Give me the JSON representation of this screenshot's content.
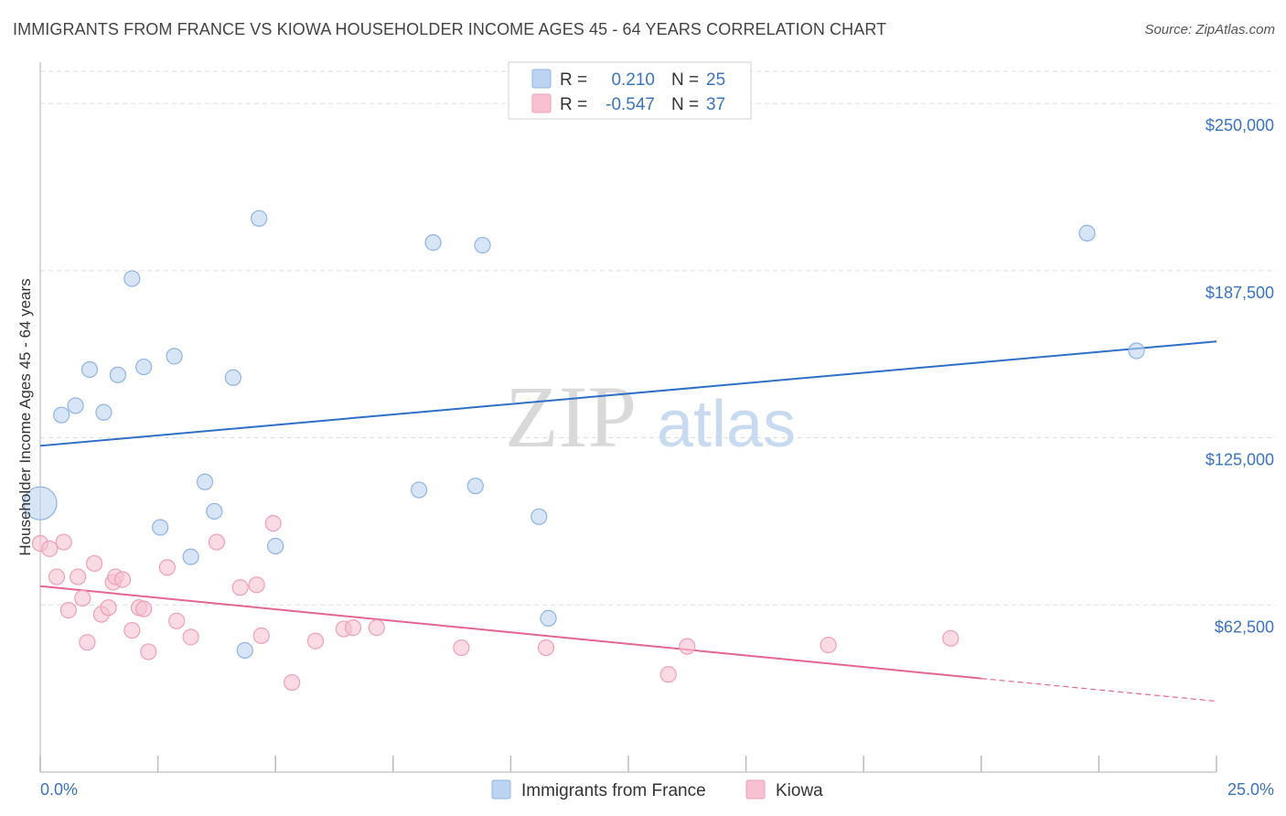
{
  "title": "IMMIGRANTS FROM FRANCE VS KIOWA HOUSEHOLDER INCOME AGES 45 - 64 YEARS CORRELATION CHART",
  "source": "Source: ZipAtlas.com",
  "watermark": {
    "zip": "ZIP",
    "atlas": "atlas"
  },
  "colors": {
    "blue_fill": "#bcd4f2",
    "blue_stroke": "#8fb3e3",
    "blue_line": "#2f6fc7",
    "pink_fill": "#f7c1d1",
    "pink_stroke": "#ee9fb8",
    "pink_line": "#e46593",
    "tick_text": "#3a73c2",
    "grid": "#dddddd"
  },
  "legend_stats": [
    {
      "r_label": "R =",
      "r_value": "0.210",
      "n_label": "N =",
      "n_value": "25"
    },
    {
      "r_label": "R =",
      "r_value": "-0.547",
      "n_label": "N =",
      "n_value": "37"
    }
  ],
  "chart_data": {
    "type": "scatter",
    "xlabel": "",
    "ylabel": "Householder Income Ages 45 - 64 years",
    "xlim": [
      0,
      25
    ],
    "ylim": [
      0,
      262000
    ],
    "x_tick_labels": [
      "0.0%",
      "25.0%"
    ],
    "y_ticks": [
      62500,
      125000,
      187500,
      250000
    ],
    "y_tick_labels": [
      "$62,500",
      "$125,000",
      "$187,500",
      "$250,000"
    ],
    "grid": true,
    "legend_position": "bottom-center",
    "series": [
      {
        "name": "Immigrants from France",
        "color": "#bcd4f2",
        "trend": {
          "x": [
            0,
            25
          ],
          "y": [
            122000,
            161000
          ]
        },
        "points": [
          {
            "x": 0.0,
            "y": 100500,
            "size": "large"
          },
          {
            "x": 0.45,
            "y": 133500
          },
          {
            "x": 0.75,
            "y": 137000
          },
          {
            "x": 1.05,
            "y": 150500
          },
          {
            "x": 1.35,
            "y": 134500
          },
          {
            "x": 1.65,
            "y": 148500
          },
          {
            "x": 1.95,
            "y": 184500
          },
          {
            "x": 2.2,
            "y": 151500
          },
          {
            "x": 2.55,
            "y": 91500
          },
          {
            "x": 2.85,
            "y": 155500
          },
          {
            "x": 3.2,
            "y": 80500
          },
          {
            "x": 3.5,
            "y": 108500
          },
          {
            "x": 3.7,
            "y": 97500
          },
          {
            "x": 4.1,
            "y": 147500
          },
          {
            "x": 4.35,
            "y": 45500
          },
          {
            "x": 4.65,
            "y": 207000
          },
          {
            "x": 5.0,
            "y": 84500
          },
          {
            "x": 8.05,
            "y": 105500
          },
          {
            "x": 8.35,
            "y": 198000
          },
          {
            "x": 9.25,
            "y": 107000
          },
          {
            "x": 9.4,
            "y": 197000
          },
          {
            "x": 10.6,
            "y": 95500
          },
          {
            "x": 10.8,
            "y": 57500
          },
          {
            "x": 22.25,
            "y": 201500
          },
          {
            "x": 23.3,
            "y": 157500
          }
        ]
      },
      {
        "name": "Kiowa",
        "color": "#f7c1d1",
        "trend": {
          "x": [
            0,
            20
          ],
          "y": [
            69500,
            35000
          ]
        },
        "trend_extension": {
          "x": [
            20,
            25
          ],
          "y": [
            35000,
            26500
          ]
        },
        "points": [
          {
            "x": 0.0,
            "y": 85500
          },
          {
            "x": 0.2,
            "y": 83500
          },
          {
            "x": 0.35,
            "y": 73000
          },
          {
            "x": 0.5,
            "y": 86000
          },
          {
            "x": 0.6,
            "y": 60500
          },
          {
            "x": 0.8,
            "y": 73000
          },
          {
            "x": 0.9,
            "y": 65000
          },
          {
            "x": 1.0,
            "y": 48500
          },
          {
            "x": 1.15,
            "y": 78000
          },
          {
            "x": 1.3,
            "y": 59000
          },
          {
            "x": 1.45,
            "y": 61500
          },
          {
            "x": 1.55,
            "y": 71000
          },
          {
            "x": 1.6,
            "y": 73000
          },
          {
            "x": 1.75,
            "y": 72000
          },
          {
            "x": 1.95,
            "y": 53000
          },
          {
            "x": 2.1,
            "y": 61500
          },
          {
            "x": 2.2,
            "y": 61000
          },
          {
            "x": 2.3,
            "y": 45000
          },
          {
            "x": 2.7,
            "y": 76500
          },
          {
            "x": 2.9,
            "y": 56500
          },
          {
            "x": 3.2,
            "y": 50500
          },
          {
            "x": 3.75,
            "y": 86000
          },
          {
            "x": 4.25,
            "y": 69000
          },
          {
            "x": 4.6,
            "y": 70000
          },
          {
            "x": 4.7,
            "y": 51000
          },
          {
            "x": 4.95,
            "y": 93000
          },
          {
            "x": 5.35,
            "y": 33500
          },
          {
            "x": 5.85,
            "y": 49000
          },
          {
            "x": 6.45,
            "y": 53500
          },
          {
            "x": 6.65,
            "y": 54000
          },
          {
            "x": 7.15,
            "y": 54000
          },
          {
            "x": 8.95,
            "y": 46500
          },
          {
            "x": 10.75,
            "y": 46500
          },
          {
            "x": 13.35,
            "y": 36500
          },
          {
            "x": 13.75,
            "y": 47000
          },
          {
            "x": 16.75,
            "y": 47500
          },
          {
            "x": 19.35,
            "y": 50000
          }
        ]
      }
    ]
  }
}
